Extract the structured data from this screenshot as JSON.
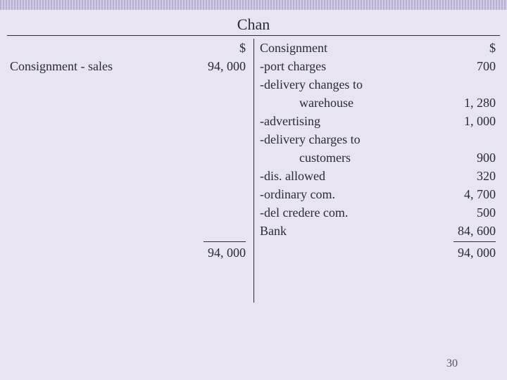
{
  "title": "Chan",
  "currency_symbol": "$",
  "left": {
    "header_label": "",
    "rows": [
      {
        "label": "Consignment - sales",
        "amount": "94, 000"
      }
    ],
    "total": "94, 000"
  },
  "right": {
    "header_label": "Consignment",
    "rows": [
      {
        "label": "-port charges",
        "amount": "700"
      },
      {
        "label": "-delivery changes to",
        "amount": ""
      },
      {
        "label": "warehouse",
        "amount": "1, 280",
        "indent": true
      },
      {
        "label": "-advertising",
        "amount": "1, 000"
      },
      {
        "label": "-delivery charges to",
        "amount": ""
      },
      {
        "label": "customers",
        "amount": "900",
        "indent": true
      },
      {
        "label": "-dis. allowed",
        "amount": "320"
      },
      {
        "label": "-ordinary com.",
        "amount": "4, 700"
      },
      {
        "label": "-del credere com.",
        "amount": "500"
      },
      {
        "label": " Bank",
        "amount": "84, 600"
      }
    ],
    "total": "94, 000"
  },
  "page_number": "30",
  "colors": {
    "background": "#e8e4f0",
    "text": "#2a2a3a",
    "deco_dark": "#b8b0d0",
    "deco_light": "#d4cce4"
  }
}
